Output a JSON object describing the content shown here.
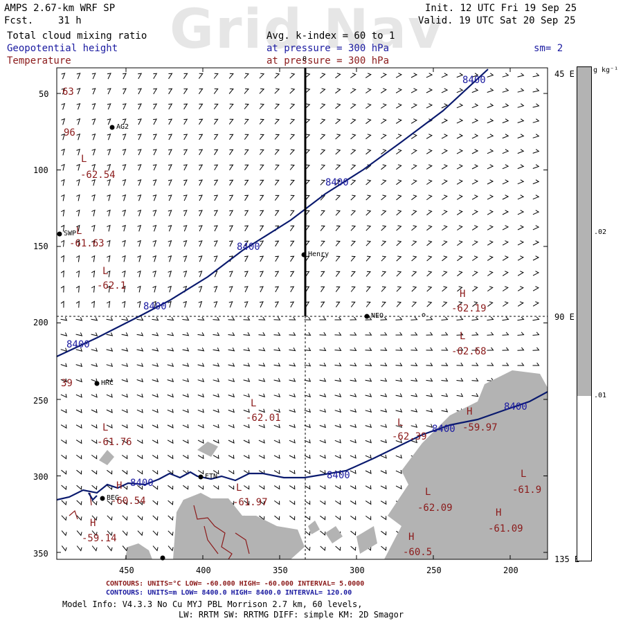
{
  "header": {
    "model": "AMPS 2.67-km WRF SP",
    "fcst_label": "Fcst.",
    "fcst_value": "31 h",
    "init": "Init. 12 UTC Fri 19 Sep 25",
    "valid": "Valid. 19 UTC Sat 20 Sep 25",
    "watermark": "Grid Nav"
  },
  "fields": {
    "shaded": "Total cloud mixing ratio",
    "shaded_info": "Avg. k-index =  60 to    1",
    "contour1": "Geopotential height",
    "contour1_info": "at pressure =  300 hPa",
    "contour2": "Temperature",
    "contour2_info": "at pressure =  300 hPa",
    "smoothing": "sm= 2"
  },
  "colors": {
    "height_contour": "#0a1a6e",
    "temp_contour": "#8b1a1a",
    "cloud_shading": "#b3b3b3",
    "guide_lines": "#000000"
  },
  "axes": {
    "y_ticks": [
      "50",
      "100",
      "150",
      "200",
      "250",
      "300",
      "350"
    ],
    "x_ticks": [
      "450",
      "400",
      "350",
      "300",
      "250",
      "200"
    ],
    "lon_labels": [
      "45 E",
      "90 E",
      "135 E"
    ],
    "top_tick": "0"
  },
  "colorbar": {
    "unit": "g kg⁻¹",
    "labels": [
      ".02",
      ".01"
    ]
  },
  "stations": [
    {
      "name": "AG2"
    },
    {
      "name": "SWP"
    },
    {
      "name": "Henry"
    },
    {
      "name": "NEO"
    },
    {
      "name": "HRC"
    },
    {
      "name": "ETN"
    },
    {
      "name": "BEG"
    }
  ],
  "height_labels": [
    "8400",
    "8400",
    "8400",
    "8400",
    "8400",
    "8400",
    "8400",
    "8400",
    "8400"
  ],
  "pressure_centers": [
    {
      "sym": "L",
      "value": "-62.54"
    },
    {
      "sym": "L",
      "value": "-61.63"
    },
    {
      "sym": "L",
      "value": "-62.1"
    },
    {
      "sym": "H",
      "value": "-62.19"
    },
    {
      "sym": "L",
      "value": "-62.68"
    },
    {
      "sym": "L",
      "value": "-62.01"
    },
    {
      "sym": "L",
      "value": "-61.76"
    },
    {
      "sym": "L",
      "value": "-62.39"
    },
    {
      "sym": "H",
      "value": "-59.97"
    },
    {
      "sym": "H",
      "value": "-60.54"
    },
    {
      "sym": "L",
      "value": "-61.97"
    },
    {
      "sym": "L",
      "value": "-62.09"
    },
    {
      "sym": "H",
      "value": "-61.09"
    },
    {
      "sym": "H",
      "value": "-59.14"
    },
    {
      "sym": "H",
      "value": "-60.5"
    },
    {
      "sym": "L",
      "value": "-61.9"
    }
  ],
  "edge_values": [
    "63",
    "96",
    "39"
  ],
  "footer": {
    "red_line": "CONTOURS:  UNITS=°C  LOW= -60.000       HIGH= -60.000      INTERVAL=   5.0000",
    "blue_line": "CONTOURS:  UNITS=m  LOW=  8400.0       HIGH=  8400.0      INTERVAL=   120.00",
    "model_info": "Model Info: V4.3.3     No Cu    MYJ PBL  Morrison            2.7 km,  60 levels,",
    "model_info2": "LW: RRTM SW: RRTMG    DIFF: simple KM: 2D Smagor"
  }
}
